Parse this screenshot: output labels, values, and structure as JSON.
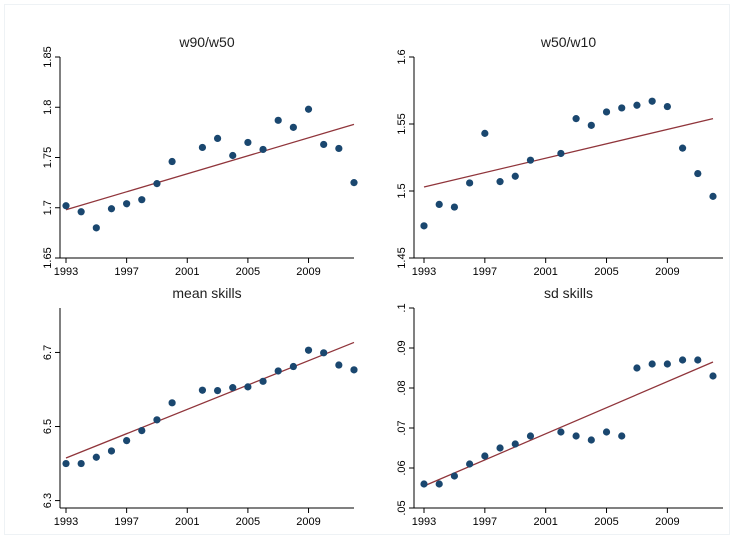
{
  "colors": {
    "point": "#1a476f",
    "fit_line": "#90353b",
    "background": "#ffffff"
  },
  "chart_data": [
    {
      "type": "scatter",
      "title": "w90/w50",
      "xlabel": "",
      "ylabel": "",
      "x_ticks": [
        "1993",
        "1997",
        "2001",
        "2005",
        "2009"
      ],
      "y_ticks": [
        "1.65",
        "1.7",
        "1.75",
        "1.8",
        "1.85"
      ],
      "xlim": [
        1993,
        2012
      ],
      "ylim": [
        1.65,
        1.85
      ],
      "grid": false,
      "series": [
        {
          "x": [
            1993,
            1994,
            1995,
            1996,
            1997,
            1998,
            1999,
            2000,
            2002,
            2003,
            2004,
            2005,
            2006,
            2007,
            2008,
            2009,
            2010,
            2011,
            2012
          ],
          "y": [
            1.702,
            1.696,
            1.68,
            1.699,
            1.704,
            1.708,
            1.724,
            1.746,
            1.76,
            1.769,
            1.752,
            1.765,
            1.758,
            1.787,
            1.78,
            1.798,
            1.763,
            1.759,
            1.725
          ]
        }
      ],
      "fit_line": {
        "x": [
          1993,
          2012
        ],
        "y": [
          1.698,
          1.783
        ]
      }
    },
    {
      "type": "scatter",
      "title": "w50/w10",
      "xlabel": "",
      "ylabel": "",
      "x_ticks": [
        "1993",
        "1997",
        "2001",
        "2005",
        "2009"
      ],
      "y_ticks": [
        "1.45",
        "1.5",
        "1.55",
        "1.6"
      ],
      "xlim": [
        1993,
        2012
      ],
      "ylim": [
        1.45,
        1.6
      ],
      "grid": false,
      "series": [
        {
          "x": [
            1993,
            1994,
            1995,
            1996,
            1997,
            1998,
            1999,
            2000,
            2002,
            2003,
            2004,
            2005,
            2006,
            2007,
            2008,
            2009,
            2010,
            2011,
            2012
          ],
          "y": [
            1.474,
            1.49,
            1.488,
            1.506,
            1.543,
            1.507,
            1.511,
            1.523,
            1.528,
            1.554,
            1.549,
            1.559,
            1.562,
            1.564,
            1.567,
            1.563,
            1.532,
            1.513,
            1.496
          ]
        }
      ],
      "fit_line": {
        "x": [
          1993,
          2012
        ],
        "y": [
          1.503,
          1.554
        ]
      }
    },
    {
      "type": "scatter",
      "title": "mean skills",
      "xlabel": "",
      "ylabel": "",
      "x_ticks": [
        "1993",
        "1997",
        "2001",
        "2005",
        "2009"
      ],
      "y_ticks": [
        "6.3",
        "6.5",
        "6.7"
      ],
      "xlim": [
        1993,
        2012
      ],
      "ylim": [
        6.28,
        6.82
      ],
      "grid": false,
      "series": [
        {
          "x": [
            1993,
            1994,
            1995,
            1996,
            1997,
            1998,
            1999,
            2000,
            2002,
            2003,
            2004,
            2005,
            2006,
            2007,
            2008,
            2009,
            2010,
            2011,
            2012
          ],
          "y": [
            6.4,
            6.4,
            6.417,
            6.434,
            6.462,
            6.489,
            6.518,
            6.564,
            6.598,
            6.597,
            6.605,
            6.607,
            6.622,
            6.65,
            6.662,
            6.706,
            6.699,
            6.666,
            6.653
          ]
        }
      ],
      "fit_line": {
        "x": [
          1993,
          2012
        ],
        "y": [
          6.415,
          6.727
        ]
      }
    },
    {
      "type": "scatter",
      "title": "sd skills",
      "xlabel": "",
      "ylabel": "",
      "x_ticks": [
        "1993",
        "1997",
        "2001",
        "2005",
        "2009"
      ],
      "y_ticks": [
        ".05",
        ".06",
        ".07",
        ".08",
        ".09",
        ".1"
      ],
      "xlim": [
        1993,
        2012
      ],
      "ylim": [
        0.05,
        0.1
      ],
      "grid": false,
      "series": [
        {
          "x": [
            1993,
            1994,
            1995,
            1996,
            1997,
            1998,
            1999,
            2000,
            2002,
            2003,
            2004,
            2005,
            2006,
            2007,
            2008,
            2009,
            2010,
            2011,
            2012
          ],
          "y": [
            0.056,
            0.056,
            0.058,
            0.061,
            0.063,
            0.065,
            0.066,
            0.068,
            0.069,
            0.068,
            0.067,
            0.069,
            0.068,
            0.085,
            0.086,
            0.086,
            0.087,
            0.087,
            0.083
          ]
        }
      ],
      "fit_line": {
        "x": [
          1993,
          2012
        ],
        "y": [
          0.0555,
          0.0865
        ]
      }
    }
  ]
}
